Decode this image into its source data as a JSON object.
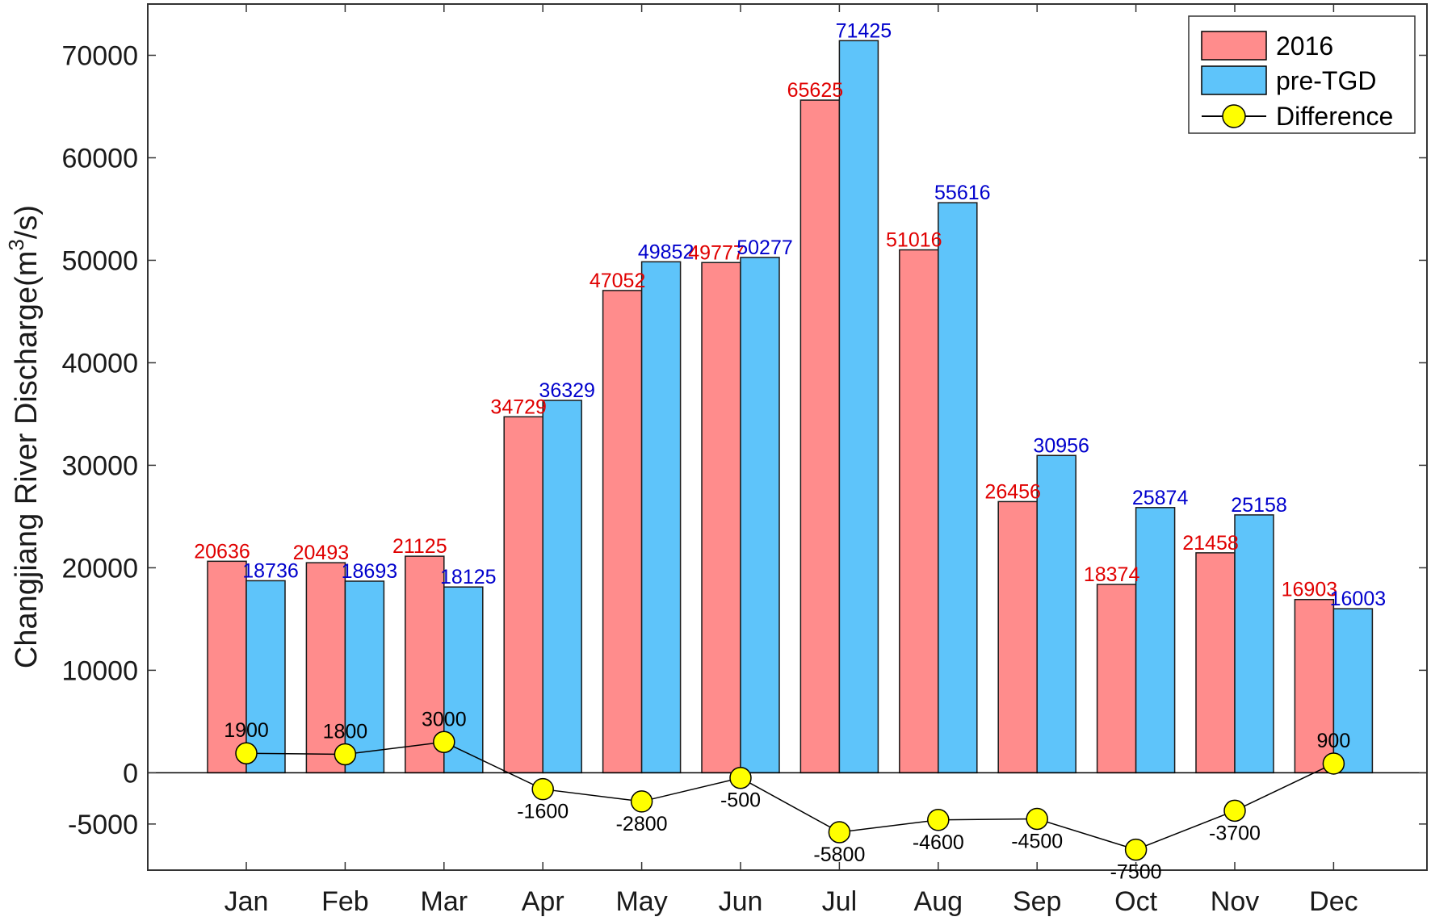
{
  "chart_data": {
    "type": "bar",
    "ylabel": "Changjiang River Discharge(m",
    "ylabel_sup": "3",
    "ylabel_tail": "/s)",
    "ylim": [
      -9500,
      75000
    ],
    "yticks": [
      -5000,
      0,
      10000,
      20000,
      30000,
      40000,
      50000,
      60000,
      70000
    ],
    "categories": [
      "Jan",
      "Feb",
      "Mar",
      "Apr",
      "May",
      "Jun",
      "Jul",
      "Aug",
      "Sep",
      "Oct",
      "Nov",
      "Dec"
    ],
    "series": [
      {
        "name": "2016",
        "color": "#FF8C8C",
        "label_color": "#E00000",
        "values": [
          20636,
          20493,
          21125,
          34729,
          47052,
          49777,
          65625,
          51016,
          26456,
          18374,
          21458,
          16903
        ]
      },
      {
        "name": "pre-TGD",
        "color": "#5EC4FA",
        "label_color": "#0000CC",
        "values": [
          18736,
          18693,
          18125,
          36329,
          49852,
          50277,
          71425,
          55616,
          30956,
          25874,
          25158,
          16003
        ]
      }
    ],
    "line_series": {
      "name": "Difference",
      "marker_color": "#FFFF00",
      "line_color": "#000000",
      "values": [
        1900,
        1800,
        3000,
        -1600,
        -2800,
        -500,
        -5800,
        -4600,
        -4500,
        -7500,
        -3700,
        900
      ]
    },
    "legend_position": "top-right"
  }
}
